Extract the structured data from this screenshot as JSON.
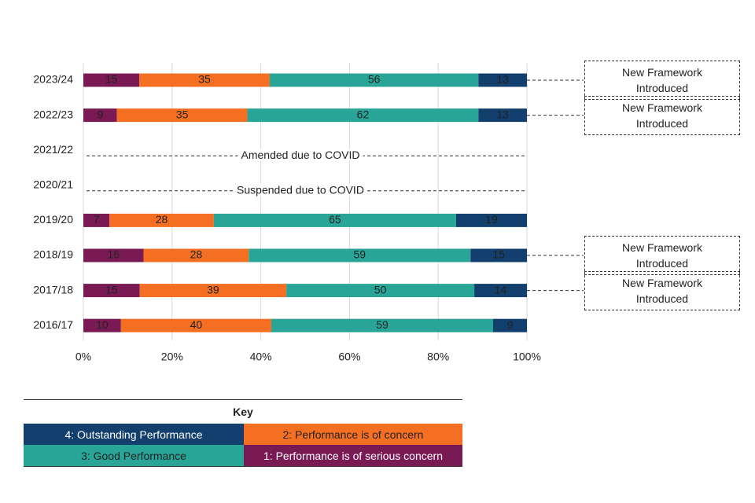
{
  "chart_data": {
    "type": "stacked_percent_bar",
    "categories": [
      "2023/24",
      "2022/23",
      "2021/22",
      "2020/21",
      "2019/20",
      "2018/19",
      "2017/18",
      "2016/17"
    ],
    "series": [
      {
        "name": "1: Performance is of serious concern",
        "color": "#7a1a55",
        "label_color": "#ffffff",
        "values": [
          15,
          9,
          null,
          null,
          7,
          16,
          15,
          10
        ]
      },
      {
        "name": "2: Performance is of concern",
        "color": "#f46f22",
        "label_color": "#222222",
        "values": [
          35,
          35,
          null,
          null,
          28,
          28,
          39,
          40
        ]
      },
      {
        "name": "3: Good Performance",
        "color": "#28a597",
        "label_color": "#222222",
        "values": [
          56,
          62,
          null,
          null,
          65,
          59,
          50,
          59
        ]
      },
      {
        "name": "4: Outstanding Performance",
        "color": "#123f6d",
        "label_color": "#ffffff",
        "values": [
          13,
          13,
          null,
          null,
          19,
          15,
          14,
          9
        ]
      }
    ],
    "side_notes": [
      "New Framework Introduced",
      "New Framework Introduced",
      null,
      null,
      null,
      "New Framework Introduced",
      "New Framework Introduced",
      null
    ],
    "gap_notes": [
      null,
      null,
      "Amended due to COVID",
      "Suspended due to COVID",
      null,
      null,
      null,
      null
    ],
    "xlim": [
      0,
      100
    ],
    "xticks": [
      {
        "value": 0,
        "label": "0%"
      },
      {
        "value": 20,
        "label": "20%"
      },
      {
        "value": 40,
        "label": "40%"
      },
      {
        "value": 60,
        "label": "60%"
      },
      {
        "value": 80,
        "label": "80%"
      },
      {
        "value": 100,
        "label": "100%"
      }
    ],
    "grid": true,
    "legend_title": "Key"
  }
}
